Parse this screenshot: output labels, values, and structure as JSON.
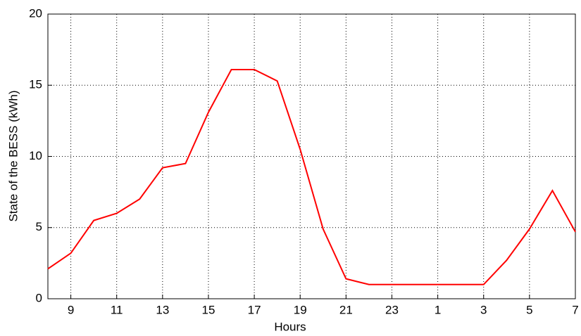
{
  "chart_data": {
    "type": "line",
    "x_label": "Hours",
    "y_label": "State of the BESS (kWh)",
    "categories": [
      null,
      "9",
      null,
      "11",
      null,
      "13",
      null,
      "15",
      null,
      "17",
      null,
      "19",
      null,
      "21",
      null,
      "23",
      null,
      "1",
      null,
      "3",
      null,
      "5",
      null,
      "7"
    ],
    "series": [
      {
        "name": "State of the BESS",
        "color": "#ff0000",
        "values": [
          2.1,
          3.2,
          5.5,
          6.0,
          7.0,
          9.2,
          9.5,
          13.1,
          16.1,
          16.1,
          15.3,
          10.5,
          4.9,
          1.4,
          1.0,
          1.0,
          1.0,
          1.0,
          1.0,
          1.0,
          2.7,
          4.9,
          7.6,
          4.7
        ]
      }
    ],
    "ylim": [
      0,
      20
    ],
    "yticks": [
      0,
      5,
      10,
      15,
      20
    ],
    "grid": true
  }
}
